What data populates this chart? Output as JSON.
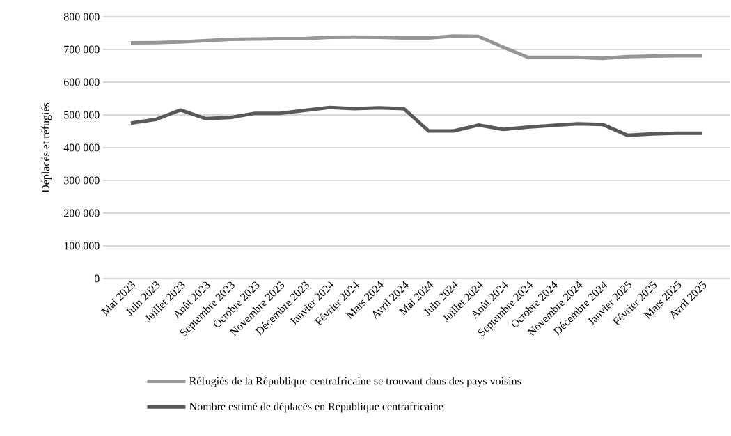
{
  "chart_data": {
    "type": "line",
    "ylabel": "Déplacés et réfugiés",
    "categories": [
      "Mai 2023",
      "Juin 2023",
      "Juillet 2023",
      "Août 2023",
      "Septembre 2023",
      "Octobre 2023",
      "Novembre 2023",
      "Décembre 2023",
      "Janvier 2024",
      "Février 2024",
      "Mars 2024",
      "Avril 2024",
      "Mai 2024",
      "Juin 2024",
      "Juillet 2024",
      "Août 2024",
      "Septembre 2024",
      "Octobre 2024",
      "Novembre 2024",
      "Décembre 2024",
      "Janvier 2025",
      "Février 2025",
      "Mars 2025",
      "Avril 2025"
    ],
    "series": [
      {
        "name": "Réfugiés de la République centrafricaine se trouvant dans des pays voisins",
        "color": "#969696",
        "values": [
          720000,
          721000,
          723000,
          727000,
          731000,
          732000,
          733000,
          733000,
          737000,
          738000,
          737000,
          735000,
          735000,
          741000,
          740000,
          707000,
          676000,
          676000,
          676000,
          673000,
          678000,
          680000,
          681000,
          681000
        ]
      },
      {
        "name": "Nombre estimé de déplacés en République centrafricaine",
        "color": "#595959",
        "values": [
          475000,
          486000,
          515000,
          489000,
          492000,
          505000,
          505000,
          514000,
          523000,
          519000,
          522000,
          519000,
          451000,
          451000,
          469000,
          456000,
          463000,
          468000,
          473000,
          471000,
          438000,
          442000,
          444000,
          444000
        ]
      }
    ],
    "ylim": [
      0,
      800000
    ],
    "yticks": [
      0,
      {
        "value": 100000,
        "label": "100 000"
      },
      {
        "value": 200000,
        "label": "200 000"
      },
      {
        "value": 300000,
        "label": "300 000"
      },
      {
        "value": 400000,
        "label": "400 000"
      },
      {
        "value": 500000,
        "label": "500 000"
      },
      {
        "value": 600000,
        "label": "600 000"
      },
      {
        "value": 700000,
        "label": "700 000"
      },
      {
        "value": 800000,
        "label": "800 000"
      }
    ],
    "grid": "y",
    "legend": "bottom",
    "marker": "none",
    "line_style": "solid"
  }
}
